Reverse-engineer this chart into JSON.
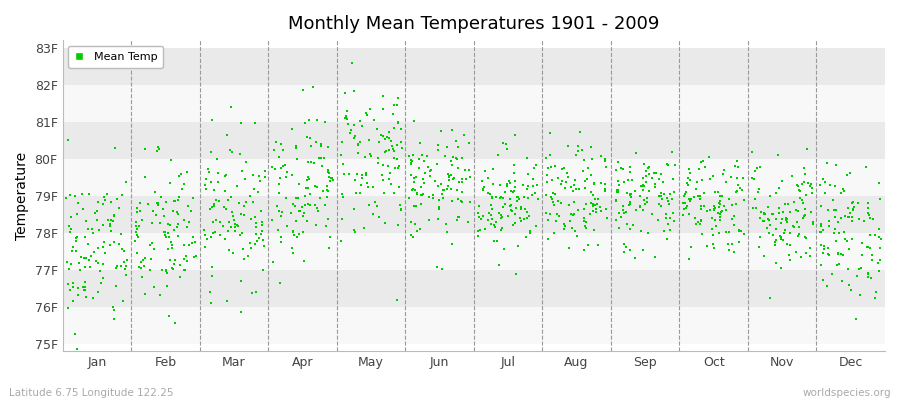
{
  "title": "Monthly Mean Temperatures 1901 - 2009",
  "ylabel": "Temperature",
  "xlabel_months": [
    "Jan",
    "Feb",
    "Mar",
    "Apr",
    "May",
    "Jun",
    "Jul",
    "Aug",
    "Sep",
    "Oct",
    "Nov",
    "Dec"
  ],
  "ytick_labels": [
    "75F",
    "76F",
    "77F",
    "78F",
    "79F",
    "80F",
    "81F",
    "82F",
    "83F"
  ],
  "ytick_values": [
    75,
    76,
    77,
    78,
    79,
    80,
    81,
    82,
    83
  ],
  "ylim": [
    74.8,
    83.2
  ],
  "dot_color": "#00CC00",
  "bg_color_white": "#f8f8f8",
  "bg_color_gray": "#eaeaea",
  "legend_label": "Mean Temp",
  "subtitle_left": "Latitude 6.75 Longitude 122.25",
  "subtitle_right": "worldspecies.org",
  "n_years": 109,
  "monthly_means": [
    77.5,
    77.9,
    78.6,
    79.3,
    80.0,
    79.2,
    78.9,
    78.9,
    78.9,
    78.8,
    78.5,
    78.0
  ],
  "monthly_stds": [
    1.1,
    1.1,
    1.0,
    1.0,
    1.1,
    0.75,
    0.7,
    0.7,
    0.7,
    0.7,
    0.8,
    0.9
  ],
  "seed": 42
}
